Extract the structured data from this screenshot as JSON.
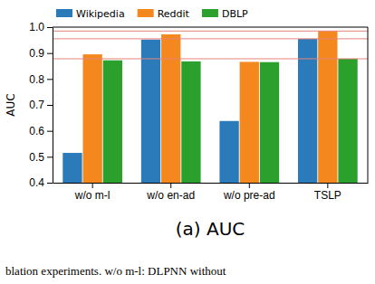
{
  "chart_data": {
    "type": "bar",
    "title": "(a) AUC",
    "annotations": [
      "blation experiments. w/o m-l: DLPNN without"
    ],
    "y_label": "AUC",
    "categories": [
      "w/o m-l",
      "w/o en-ad",
      "w/o pre-ad",
      "TSLP"
    ],
    "series": [
      {
        "name": "Wikipedia",
        "color": "#2b7bba",
        "values": [
          0.515,
          0.952,
          0.638,
          0.955
        ]
      },
      {
        "name": "Reddit",
        "color": "#f5871f",
        "values": [
          0.895,
          0.972,
          0.866,
          0.985
        ]
      },
      {
        "name": "DBLP",
        "color": "#2ca02c",
        "values": [
          0.872,
          0.868,
          0.865,
          0.878
        ]
      }
    ],
    "reference_lines": {
      "values": [
        0.985,
        0.955,
        0.878
      ],
      "color": "#e8837a"
    },
    "ylim": [
      0.4,
      1.0
    ],
    "yticks": [
      0.4,
      0.5,
      0.6,
      0.7,
      0.8,
      0.9,
      {
        "value": 1.0,
        "label": "1.0"
      }
    ],
    "grid": false,
    "legend": "upper left"
  }
}
